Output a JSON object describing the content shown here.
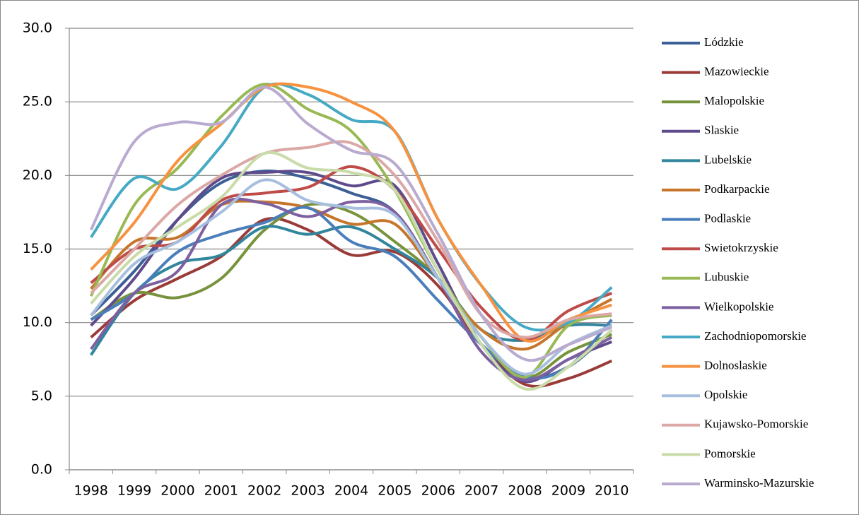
{
  "chart_data": {
    "type": "line",
    "categories": [
      "1998",
      "1999",
      "2000",
      "2001",
      "2002",
      "2003",
      "2004",
      "2005",
      "2006",
      "2007",
      "2008",
      "2009",
      "2010"
    ],
    "ylim": [
      0,
      30
    ],
    "yticks": [
      {
        "value": 0,
        "label": "0.0"
      },
      {
        "value": 5,
        "label": "5.0"
      },
      {
        "value": 10,
        "label": "10.0"
      },
      {
        "value": 15,
        "label": "15.0"
      },
      {
        "value": 20,
        "label": "20.0"
      },
      {
        "value": 25,
        "label": "25.0"
      },
      {
        "value": 30,
        "label": "30.0"
      }
    ],
    "grid": true,
    "legend": "right",
    "series": [
      {
        "name": "Lódzkie",
        "color": "#3c5f95",
        "values": [
          10.5,
          13.5,
          17,
          19.5,
          20.3,
          19.8,
          18.8,
          17.5,
          13,
          8.5,
          6.3,
          7,
          9.5
        ]
      },
      {
        "name": "Mazowieckie",
        "color": "#9b3b38",
        "values": [
          9.0,
          11.5,
          13.0,
          14.5,
          17.0,
          16.3,
          14.6,
          14.8,
          12.5,
          8.5,
          5.8,
          6.2,
          7.4
        ]
      },
      {
        "name": "Malopolskie",
        "color": "#77933c",
        "values": [
          10.2,
          12.0,
          11.7,
          13.0,
          16.3,
          18.0,
          17.5,
          15.5,
          13.0,
          9.0,
          6.3,
          8.0,
          9.2
        ]
      },
      {
        "name": "Slaskie",
        "color": "#5f4b8b",
        "values": [
          9.8,
          13.0,
          17.0,
          19.8,
          20.2,
          20.2,
          19.3,
          19.3,
          14.0,
          8.5,
          6.0,
          7.5,
          8.7
        ]
      },
      {
        "name": "Lubelskie",
        "color": "#31859c",
        "values": [
          7.8,
          12.0,
          14.0,
          14.6,
          16.5,
          16.0,
          16.5,
          15.0,
          13.0,
          9.5,
          8.8,
          9.8,
          9.8
        ]
      },
      {
        "name": "Podkarpackie",
        "color": "#c6752b",
        "values": [
          12.3,
          15.5,
          15.8,
          18.0,
          18.2,
          17.8,
          16.7,
          16.7,
          13.0,
          9.5,
          8.2,
          10.0,
          11.6
        ]
      },
      {
        "name": "Podlaskie",
        "color": "#4a7ebb",
        "values": [
          10.2,
          12.0,
          14.8,
          16.0,
          16.8,
          17.8,
          15.5,
          14.5,
          11.5,
          8.5,
          6.3,
          7.0,
          10.2
        ]
      },
      {
        "name": "Swietokrzyskie",
        "color": "#be4b48",
        "values": [
          12.7,
          15.0,
          15.5,
          18.3,
          18.8,
          19.2,
          20.6,
          19.0,
          15.0,
          11.0,
          8.8,
          10.8,
          12.0
        ]
      },
      {
        "name": "Lubuskie",
        "color": "#98b954",
        "values": [
          11.8,
          18.0,
          20.5,
          24.0,
          26.2,
          24.5,
          23.0,
          19.0,
          13.5,
          9.0,
          6.3,
          9.8,
          10.5
        ]
      },
      {
        "name": "Wielkopolskie",
        "color": "#7d60a0",
        "values": [
          8.2,
          12.0,
          13.5,
          18.0,
          18.1,
          17.2,
          18.2,
          17.5,
          13.0,
          8.0,
          6.1,
          7.5,
          9.0
        ]
      },
      {
        "name": "Zachodniopomorskie",
        "color": "#46aac5",
        "values": [
          15.8,
          19.8,
          19.1,
          22.0,
          26.0,
          25.5,
          23.8,
          23.0,
          17.0,
          12.5,
          9.7,
          10.0,
          12.4
        ]
      },
      {
        "name": "Dolnoslaskie",
        "color": "#f69240",
        "values": [
          13.6,
          16.8,
          21.0,
          23.5,
          26.0,
          26.0,
          25.0,
          23.0,
          17.0,
          12.5,
          8.8,
          10.2,
          11.2
        ]
      },
      {
        "name": "Opolskie",
        "color": "#a7bfde",
        "values": [
          10.5,
          14.0,
          15.5,
          17.5,
          19.7,
          18.3,
          17.8,
          17.3,
          13.0,
          9.0,
          6.5,
          8.5,
          9.8
        ]
      },
      {
        "name": "Kujawsko-Pomorskie",
        "color": "#dba8a6",
        "values": [
          12.0,
          15.0,
          18.0,
          20.0,
          21.5,
          21.9,
          22.2,
          20.0,
          15.5,
          10.5,
          9.0,
          10.2,
          10.6
        ]
      },
      {
        "name": "Pomorskie",
        "color": "#c9dba8",
        "values": [
          11.3,
          14.5,
          16.5,
          18.5,
          21.5,
          20.5,
          20.2,
          19.0,
          13.5,
          8.5,
          5.5,
          7.0,
          9.5
        ]
      },
      {
        "name": "Warminsko-Mazurskie",
        "color": "#b9aad0",
        "values": [
          16.3,
          22.3,
          23.6,
          23.6,
          26.0,
          23.5,
          21.7,
          20.8,
          16.0,
          10.5,
          7.5,
          8.5,
          9.7
        ]
      }
    ]
  }
}
